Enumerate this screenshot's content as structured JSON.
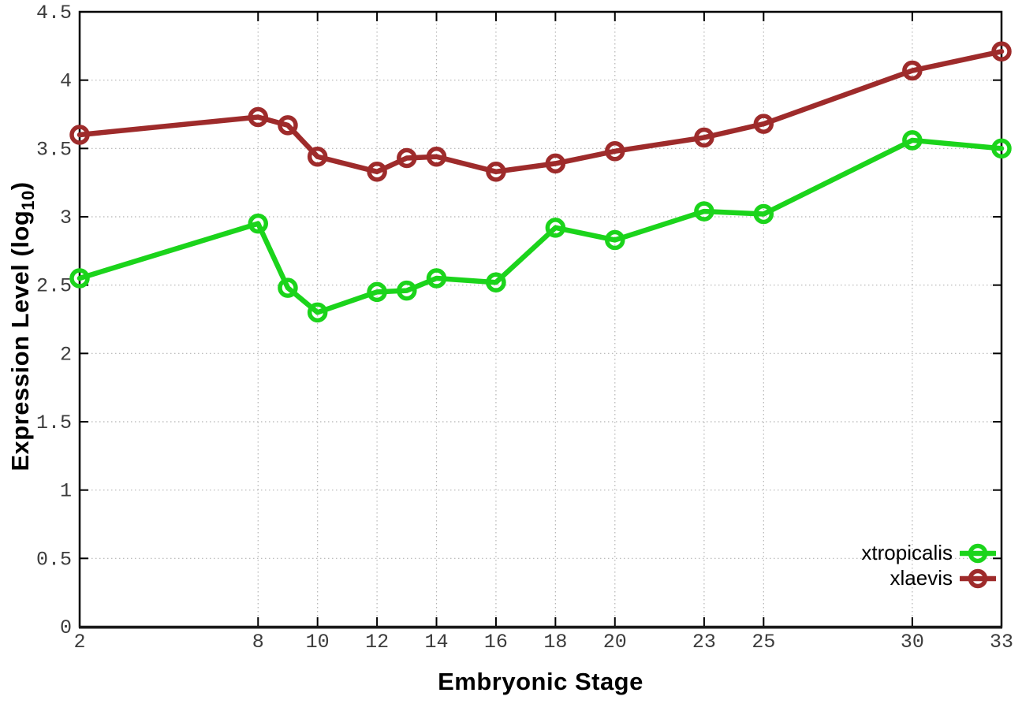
{
  "axes": {
    "x_label": "Embryonic Stage",
    "y_label_main": "Expression Level (log",
    "y_label_sub": "10",
    "y_label_close": ")"
  },
  "chart_data": {
    "type": "line",
    "title": "",
    "xlabel": "Embryonic Stage",
    "ylabel": "Expression Level (log10)",
    "xlim": [
      2,
      33
    ],
    "ylim": [
      0,
      4.5
    ],
    "x_ticks": [
      2,
      8,
      10,
      12,
      14,
      16,
      18,
      20,
      23,
      25,
      30,
      33
    ],
    "y_ticks": [
      0,
      0.5,
      1,
      1.5,
      2,
      2.5,
      3,
      3.5,
      4,
      4.5
    ],
    "grid": "dotted",
    "legend_position": "inside bottom-right",
    "x": [
      2,
      8,
      9,
      10,
      12,
      13,
      14,
      16,
      18,
      20,
      23,
      25,
      30,
      33
    ],
    "series": [
      {
        "name": "xtropicalis",
        "color": "#1bd41b",
        "marker": "open-circle",
        "values": [
          2.55,
          2.95,
          2.48,
          2.3,
          2.45,
          2.46,
          2.55,
          2.52,
          2.92,
          2.83,
          3.04,
          3.02,
          3.56,
          3.5
        ]
      },
      {
        "name": "xlaevis",
        "color": "#9e2b2b",
        "marker": "open-circle",
        "values": [
          3.6,
          3.73,
          3.67,
          3.44,
          3.33,
          3.43,
          3.44,
          3.33,
          3.39,
          3.48,
          3.58,
          3.68,
          4.07,
          4.21
        ]
      }
    ],
    "style": {
      "background": "#ffffff",
      "grid_color": "#b4b4b4",
      "axis_color": "#000000",
      "tick_label_color": "#3c3c3c",
      "line_width": 6.5,
      "marker_radius": 10
    }
  }
}
